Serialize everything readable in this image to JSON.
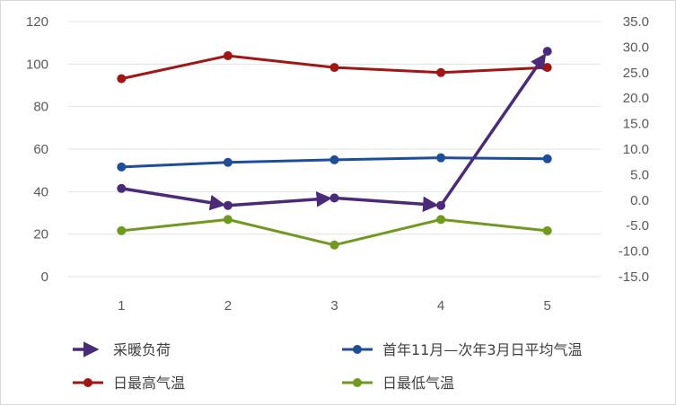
{
  "chart_data": {
    "type": "line",
    "categories": [
      "1",
      "2",
      "3",
      "4",
      "5"
    ],
    "left_axis": {
      "ylim": [
        0,
        120
      ],
      "ticks": [
        "0",
        "20",
        "40",
        "60",
        "80",
        "100",
        "120"
      ]
    },
    "right_axis": {
      "ylim": [
        -15,
        35
      ],
      "ticks": [
        "-15.0",
        "-10.0",
        "-5.0",
        "0.0",
        "5.0",
        "10.0",
        "15.0",
        "20.0",
        "25.0",
        "30.0",
        "35.0"
      ]
    },
    "grid": true,
    "legend_position": "bottom",
    "series": [
      {
        "name": "采暖负荷",
        "axis": "left",
        "color": "#4b2a7a",
        "marker": "circle",
        "arrows": true,
        "values": [
          41.5,
          33.5,
          37,
          33.5,
          106
        ]
      },
      {
        "name": "首年11月—次年3月日平均气温",
        "axis": "right",
        "color": "#1f4e99",
        "marker": "circle",
        "values": [
          6.5,
          7.4,
          7.9,
          8.3,
          8.1
        ]
      },
      {
        "name": "日最高气温",
        "axis": "right",
        "color": "#a31515",
        "marker": "circle",
        "values": [
          23.8,
          28.3,
          26.0,
          25.0,
          26.0
        ]
      },
      {
        "name": "日最低气温",
        "axis": "right",
        "color": "#6f9a1f",
        "marker": "circle",
        "values": [
          -6.0,
          -3.8,
          -8.8,
          -3.8,
          -6.0
        ]
      }
    ]
  }
}
